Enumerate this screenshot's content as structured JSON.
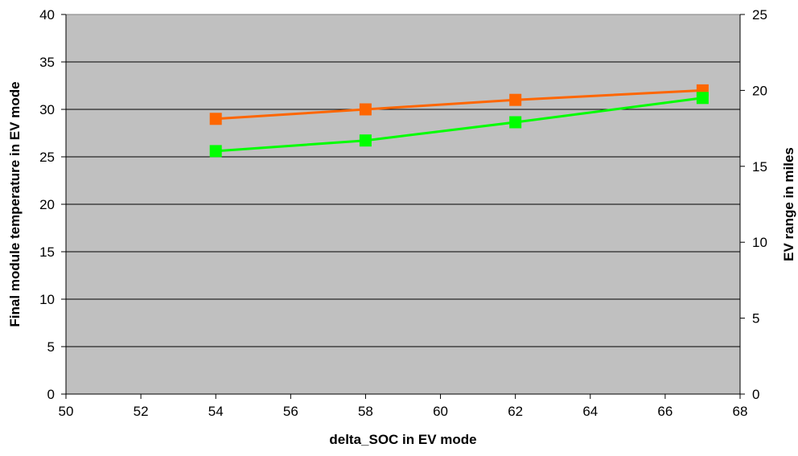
{
  "chart_data": {
    "type": "line",
    "title": "",
    "xlabel": "delta_SOC in EV mode",
    "ylabel": "Final module temperature in EV mode",
    "y2label": "EV range in miles",
    "xlim": [
      50,
      68
    ],
    "ylim": [
      0,
      40
    ],
    "y2lim": [
      0,
      25
    ],
    "x_ticks": [
      50,
      52,
      54,
      56,
      58,
      60,
      62,
      64,
      66,
      68
    ],
    "y_ticks": [
      0,
      5,
      10,
      15,
      20,
      25,
      30,
      35,
      40
    ],
    "y2_ticks": [
      0,
      5,
      10,
      15,
      20,
      25
    ],
    "grid": "horizontal",
    "legend": "none",
    "plot_background": "#c0c0c0",
    "series": [
      {
        "axis": "left",
        "color": "#ff6600",
        "marker": "square",
        "x": [
          54,
          58,
          62,
          67
        ],
        "y": [
          29,
          30,
          31,
          32
        ]
      },
      {
        "axis": "right",
        "color": "#00ff00",
        "marker": "square",
        "x": [
          54,
          58,
          62,
          67
        ],
        "y": [
          16,
          16.7,
          17.9,
          19.5
        ]
      }
    ]
  }
}
